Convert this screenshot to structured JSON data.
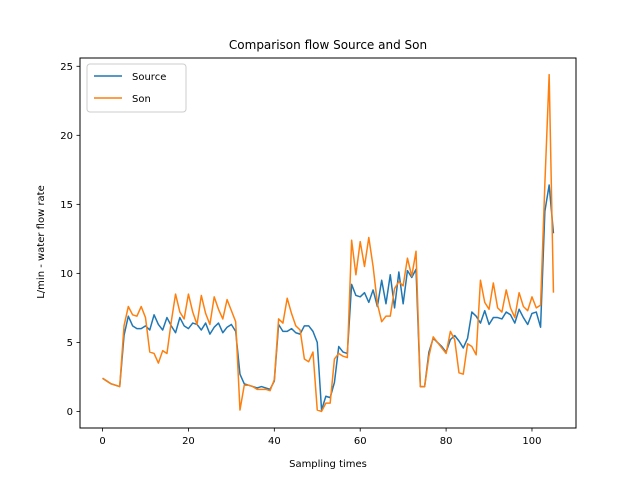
{
  "chart_data": {
    "type": "line",
    "title": "Comparison flow Source and Son",
    "xlabel": "Sampling times",
    "ylabel": "L/min - water flow rate",
    "xlim": [
      -5.25,
      110.25
    ],
    "ylim": [
      -1.2,
      25.6
    ],
    "xticks": [
      0,
      20,
      40,
      60,
      80,
      100
    ],
    "yticks": [
      0,
      5,
      10,
      15,
      20,
      25
    ],
    "grid": false,
    "legend_position": "top-left",
    "series": [
      {
        "name": "Source",
        "color": "#1f77b4",
        "values": [
          2.4,
          2.2,
          2.0,
          1.9,
          1.8,
          5.5,
          6.9,
          6.2,
          6.0,
          6.0,
          6.2,
          5.9,
          7.0,
          6.3,
          5.9,
          6.8,
          6.2,
          5.7,
          6.8,
          6.2,
          6.0,
          6.4,
          6.3,
          5.9,
          6.4,
          5.6,
          6.1,
          6.4,
          5.7,
          6.1,
          6.3,
          5.8,
          2.7,
          2.0,
          1.9,
          1.8,
          1.7,
          1.8,
          1.7,
          1.6,
          2.2,
          6.3,
          5.8,
          5.8,
          6.0,
          5.7,
          5.6,
          6.2,
          6.2,
          5.8,
          5.0,
          0.1,
          1.1,
          1.0,
          2.1,
          4.7,
          4.3,
          4.2,
          9.2,
          8.4,
          8.3,
          8.6,
          7.9,
          8.8,
          7.6,
          9.5,
          7.8,
          9.9,
          7.5,
          10.1,
          7.8,
          10.2,
          9.7,
          10.3,
          1.8,
          1.8,
          4.3,
          5.3,
          5.0,
          4.7,
          4.3,
          5.2,
          5.5,
          5.1,
          4.6,
          5.3,
          7.2,
          6.9,
          6.4,
          7.3,
          6.3,
          6.8,
          6.8,
          6.7,
          7.2,
          7.0,
          6.4,
          7.4,
          6.8,
          6.3,
          7.1,
          7.2,
          6.1,
          14.5,
          16.4,
          12.9
        ]
      },
      {
        "name": "Son",
        "color": "#ff7f0e",
        "values": [
          2.4,
          2.2,
          2.0,
          1.9,
          1.8,
          6.2,
          7.6,
          7.0,
          6.9,
          7.6,
          6.8,
          4.3,
          4.2,
          3.5,
          4.4,
          4.2,
          6.5,
          8.5,
          7.2,
          6.7,
          8.5,
          7.2,
          6.3,
          8.4,
          7.1,
          6.3,
          8.3,
          7.4,
          6.7,
          8.1,
          7.3,
          6.5,
          0.1,
          1.9,
          1.9,
          1.8,
          1.6,
          1.6,
          1.6,
          1.5,
          2.3,
          6.7,
          6.4,
          8.2,
          7.1,
          6.2,
          5.9,
          3.8,
          3.6,
          4.3,
          0.1,
          0.0,
          0.6,
          0.6,
          3.8,
          4.2,
          4.0,
          3.9,
          12.4,
          9.9,
          12.3,
          10.5,
          12.6,
          10.5,
          7.8,
          6.5,
          6.9,
          6.9,
          8.9,
          9.4,
          9.1,
          11.1,
          9.8,
          11.6,
          1.8,
          1.8,
          4.0,
          5.4,
          5.0,
          4.6,
          4.2,
          5.8,
          5.2,
          2.8,
          2.7,
          4.9,
          4.7,
          4.1,
          9.5,
          7.9,
          7.4,
          9.3,
          7.5,
          7.2,
          8.8,
          7.5,
          6.8,
          8.6,
          7.6,
          7.3,
          8.3,
          7.5,
          7.7,
          16.5,
          24.4,
          8.6
        ]
      }
    ]
  }
}
